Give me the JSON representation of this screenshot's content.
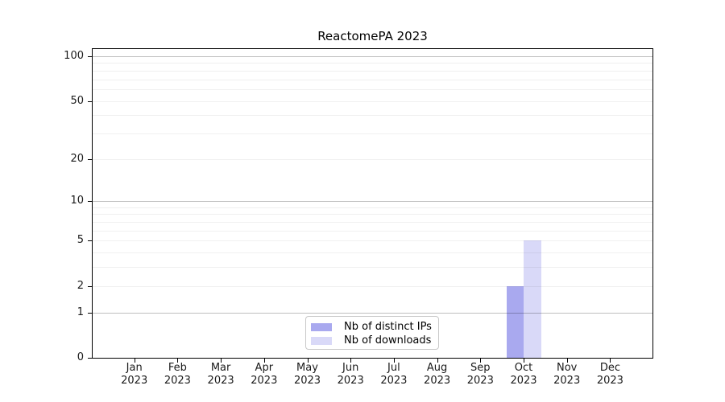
{
  "chart_data": {
    "type": "bar",
    "title": "ReactomePA 2023",
    "year": "2023",
    "months": [
      "Jan",
      "Feb",
      "Mar",
      "Apr",
      "May",
      "Jun",
      "Jul",
      "Aug",
      "Sep",
      "Oct",
      "Nov",
      "Dec"
    ],
    "categories": [
      "Jan 2023",
      "Feb 2023",
      "Mar 2023",
      "Apr 2023",
      "May 2023",
      "Jun 2023",
      "Jul 2023",
      "Aug 2023",
      "Sep 2023",
      "Oct 2023",
      "Nov 2023",
      "Dec 2023"
    ],
    "series": [
      {
        "name": "Nb of distinct IPs",
        "color": "#a9a9ef",
        "values": [
          0,
          0,
          0,
          0,
          0,
          0,
          0,
          0,
          0,
          2,
          0,
          0
        ]
      },
      {
        "name": "Nb of downloads",
        "color": "#d9d9f8",
        "values": [
          0,
          0,
          0,
          0,
          0,
          0,
          0,
          0,
          0,
          5,
          0,
          0
        ]
      }
    ],
    "yticks": [
      0,
      1,
      2,
      5,
      10,
      20,
      50,
      100
    ],
    "ylim": [
      0,
      100
    ],
    "yscale": "log1p",
    "grid": {
      "major_values": [
        1,
        10,
        100
      ],
      "minor_values": [
        2,
        3,
        4,
        5,
        6,
        7,
        8,
        9,
        20,
        30,
        40,
        50,
        60,
        70,
        80,
        90
      ]
    },
    "legend_position": "bottom-center",
    "colors": {
      "grid_major": "rgba(0,0,0,0.25)",
      "grid_minor": "rgba(0,0,0,0.06)",
      "axis": "#000000",
      "background": "#ffffff",
      "text": "#1a1a1a"
    }
  }
}
